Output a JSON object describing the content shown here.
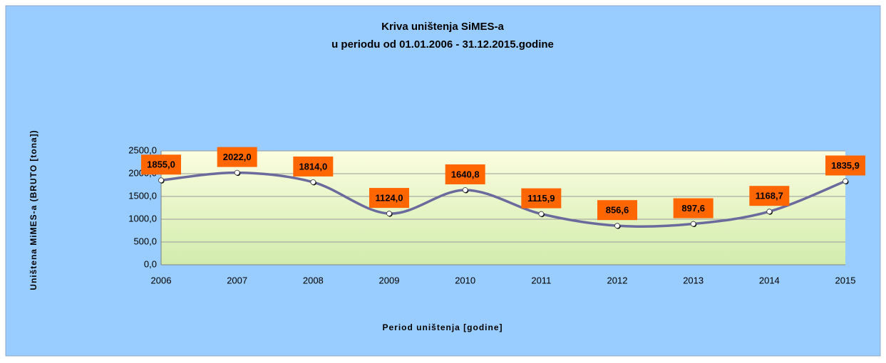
{
  "chart_data": {
    "type": "line",
    "title": "Kriva uništenja SiMES-a",
    "subtitle": "u periodu od 01.01.2006 - 31.12.2015.godine",
    "y_label": "Uništena MiMES-a (BRUTO [tona])",
    "x_label": "Period uništenja [godine]",
    "categories": [
      "2006",
      "2007",
      "2008",
      "2009",
      "2010",
      "2011",
      "2012",
      "2013",
      "2014",
      "2015"
    ],
    "series": [
      {
        "name": "Uništena MiMES-a",
        "color": "#6a6a9c",
        "values": [
          1855.0,
          2022.0,
          1814.0,
          1124.0,
          1640.8,
          1115.9,
          856.6,
          897.6,
          1168.7,
          1835.9
        ],
        "value_labels": [
          "1855,0",
          "2022,0",
          "1814,0",
          "1124,0",
          "1640,8",
          "1115,9",
          "856,6",
          "897,6",
          "1168,7",
          "1835,9"
        ]
      }
    ],
    "ylim": [
      0,
      2500
    ],
    "yticks": [
      {
        "value": 0,
        "label": "0,0"
      },
      {
        "value": 500,
        "label": "500,0"
      },
      {
        "value": 1000,
        "label": "1000,0"
      },
      {
        "value": 1500,
        "label": "1500,0"
      },
      {
        "value": 2000,
        "label": "2000,0"
      },
      {
        "value": 2500,
        "label": "2500,0"
      }
    ],
    "grid": true,
    "label_color": "#ff6600"
  }
}
